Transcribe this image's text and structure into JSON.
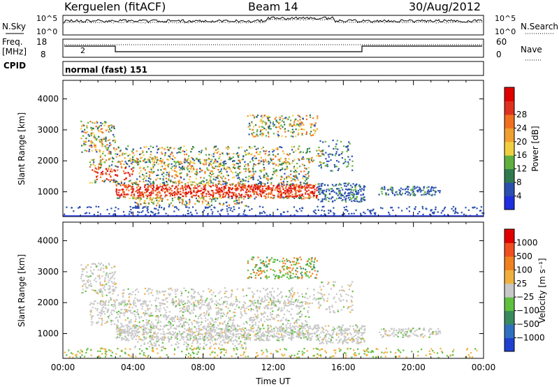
{
  "header": {
    "station": "Kerguelen (fitACF)",
    "beam": "Beam 14",
    "date": "30/Aug/2012"
  },
  "noise_panel": {
    "left_label": "N.Sky",
    "right_label": "N.Search",
    "tick_top_left": "10^5",
    "tick_bottom_left": "10^0",
    "tick_top_right": "10^5",
    "tick_bottom_right": "10^0"
  },
  "freq_panel": {
    "left_label_1": "Freq.",
    "left_label_2": "[MHz]",
    "right_label": "Nave",
    "left_ticks": [
      "18",
      "8"
    ],
    "right_ticks": [
      "60",
      "0"
    ]
  },
  "cpid_panel": {
    "label": "CPID",
    "mode_text": "normal (fast) 151"
  },
  "chart_data": [
    {
      "type": "heatmap",
      "name": "power",
      "ylabel": "Slant Range [km]",
      "yticks": [
        "1000",
        "2000",
        "3000",
        "4000"
      ],
      "ylim": [
        200,
        4600
      ],
      "xlim": [
        0,
        24
      ],
      "colorbar_label": "Power [dB]",
      "colorbar_ticks": [
        "4",
        "8",
        "12",
        "16",
        "20",
        "24",
        "28"
      ],
      "colorbar_colors": [
        "#1f2fe0",
        "#2a4fb0",
        "#2f7a50",
        "#5fb040",
        "#f0d040",
        "#f0a030",
        "#f07020",
        "#e03020",
        "#e00000"
      ]
    },
    {
      "type": "heatmap",
      "name": "velocity",
      "ylabel": "Slant Range [km]",
      "yticks": [
        "1000",
        "2000",
        "3000",
        "4000"
      ],
      "ylim": [
        200,
        4600
      ],
      "xlim": [
        0,
        24
      ],
      "xlabel": "Time UT",
      "xticks": [
        "00:00",
        "04:00",
        "08:00",
        "12:00",
        "16:00",
        "20:00",
        "00:00"
      ],
      "colorbar_label": "Velocity [m s⁻¹]",
      "colorbar_ticks": [
        "1000",
        "500",
        "100",
        "25",
        "−25",
        "−100",
        "−500",
        "−1000"
      ],
      "colorbar_colors": [
        "#2040d0",
        "#3070c0",
        "#3a8a60",
        "#60c040",
        "#c8c8c8",
        "#f0b040",
        "#f08020",
        "#f05020",
        "#e00000"
      ]
    }
  ]
}
